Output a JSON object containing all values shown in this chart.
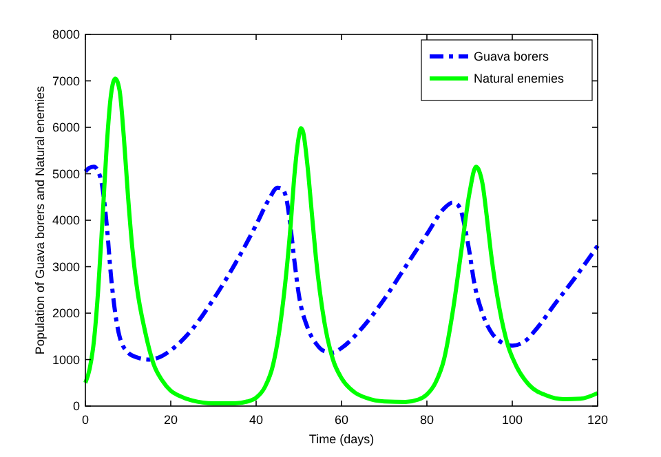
{
  "chart_data": {
    "type": "line",
    "xlabel": "Time (days)",
    "ylabel": "Population of Guava borers and Natural enemies",
    "xlim": [
      0,
      120
    ],
    "ylim": [
      0,
      8000
    ],
    "xticks": [
      0,
      20,
      40,
      60,
      80,
      100,
      120
    ],
    "yticks": [
      0,
      1000,
      2000,
      3000,
      4000,
      5000,
      6000,
      7000,
      8000
    ],
    "grid": false,
    "legend": "top right",
    "series": [
      {
        "name": "Guava borers",
        "color": "#0000ff",
        "line_style": "dashdot",
        "x": [
          0,
          1,
          2,
          3,
          4,
          5,
          6,
          7,
          8,
          10,
          12,
          15,
          18,
          20,
          25,
          30,
          35,
          40,
          43,
          45,
          46,
          47,
          48,
          49,
          50,
          52,
          54,
          56,
          58,
          60,
          65,
          70,
          75,
          80,
          84,
          86,
          87,
          88,
          89,
          90,
          91,
          93,
          95,
          97,
          100,
          103,
          106,
          110,
          115,
          120
        ],
        "values": [
          5050,
          5130,
          5150,
          5050,
          4700,
          3900,
          2800,
          2000,
          1500,
          1150,
          1050,
          1000,
          1080,
          1200,
          1650,
          2300,
          3050,
          3900,
          4450,
          4700,
          4680,
          4500,
          3900,
          3100,
          2400,
          1700,
          1350,
          1180,
          1150,
          1250,
          1700,
          2300,
          3000,
          3700,
          4250,
          4380,
          4350,
          4200,
          3800,
          3300,
          2700,
          2000,
          1600,
          1400,
          1300,
          1400,
          1700,
          2200,
          2800,
          3450
        ]
      },
      {
        "name": "Natural enemies",
        "color": "#00ff00",
        "line_style": "solid",
        "x": [
          0,
          1,
          2,
          3,
          4,
          5,
          6,
          7,
          8,
          9,
          10,
          11,
          12,
          14,
          16,
          18,
          20,
          22,
          25,
          30,
          35,
          38,
          40,
          42,
          44,
          46,
          48,
          49,
          50,
          50.5,
          51,
          52,
          53,
          54,
          56,
          58,
          60,
          63,
          66,
          70,
          75,
          78,
          80,
          82,
          84,
          86,
          88,
          90,
          91.5,
          93,
          94,
          95,
          97,
          99,
          101,
          104,
          108,
          112,
          116,
          120
        ],
        "values": [
          500,
          800,
          1400,
          2500,
          4000,
          5600,
          6700,
          7050,
          6800,
          5800,
          4500,
          3400,
          2600,
          1600,
          900,
          550,
          330,
          220,
          120,
          60,
          60,
          100,
          180,
          400,
          900,
          2000,
          3800,
          5000,
          5800,
          5980,
          5900,
          5200,
          4200,
          3200,
          1800,
          1000,
          600,
          300,
          170,
          100,
          90,
          140,
          250,
          500,
          1000,
          2000,
          3300,
          4600,
          5150,
          4800,
          4100,
          3300,
          2100,
          1300,
          850,
          450,
          230,
          150,
          160,
          280
        ]
      }
    ]
  }
}
